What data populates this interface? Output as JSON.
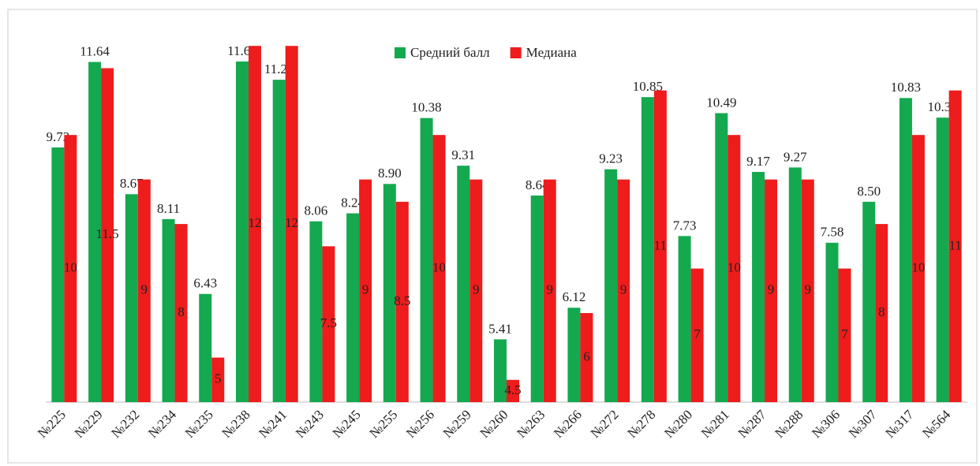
{
  "chart_data": {
    "type": "bar",
    "categories": [
      "№225",
      "№229",
      "№232",
      "№234",
      "№235",
      "№238",
      "№241",
      "№243",
      "№245",
      "№255",
      "№256",
      "№259",
      "№260",
      "№263",
      "№266",
      "№272",
      "№278",
      "№280",
      "№281",
      "№287",
      "№288",
      "№306",
      "№307",
      "№317",
      "№564"
    ],
    "series": [
      {
        "name": "Средний балл",
        "color": "#14a94f",
        "values": [
          9.72,
          11.64,
          8.67,
          8.11,
          6.43,
          11.65,
          11.24,
          8.06,
          8.24,
          8.9,
          10.38,
          9.31,
          5.41,
          8.64,
          6.12,
          9.23,
          10.85,
          7.73,
          10.49,
          9.17,
          9.27,
          7.58,
          8.5,
          10.83,
          10.39
        ],
        "value_labels": [
          "9.72",
          "11.64",
          "8.67",
          "8.11",
          "6.43",
          "11.65",
          "11.24",
          "8.06",
          "8.24",
          "8.90",
          "10.38",
          "9.31",
          "5.41",
          "8.64",
          "6.12",
          "9.23",
          "10.85",
          "7.73",
          "10.49",
          "9.17",
          "9.27",
          "7.58",
          "8.50",
          "10.83",
          "10.39"
        ]
      },
      {
        "name": "Медиана",
        "color": "#ee1c1c",
        "values": [
          10,
          11.5,
          9,
          8,
          5,
          12,
          12,
          7.5,
          9,
          8.5,
          10,
          9,
          4.5,
          9,
          6,
          9,
          11,
          7,
          10,
          9,
          9,
          7,
          8,
          10,
          11
        ]
      }
    ],
    "ylim": [
      4,
      12.5
    ],
    "legend": "top"
  }
}
